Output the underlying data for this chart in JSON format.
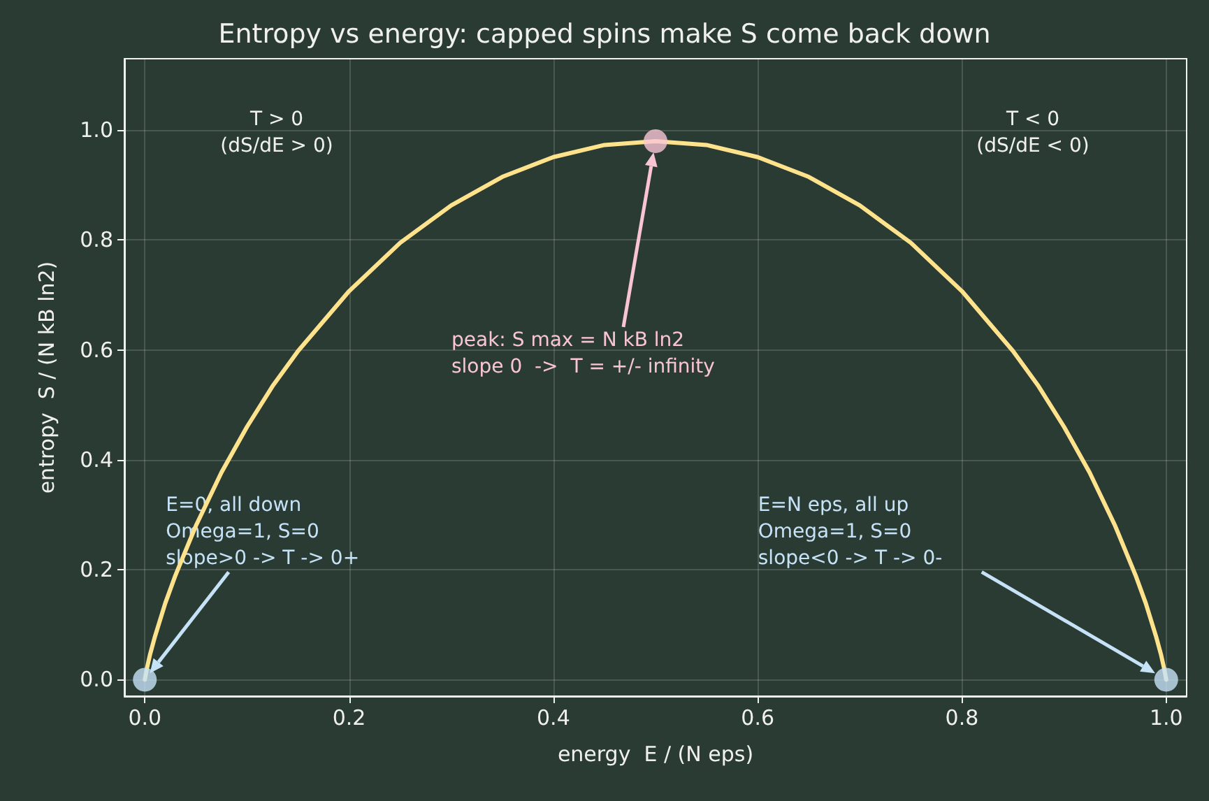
{
  "chart_data": {
    "type": "line",
    "title": "Entropy vs energy: capped spins make S come back down",
    "xlabel": "energy  E / (N eps)",
    "ylabel": "entropy  S / (N kB ln2)",
    "xlim": [
      -0.02,
      1.02
    ],
    "ylim": [
      -0.03,
      1.13
    ],
    "xticks": [
      {
        "value": 0,
        "label": "0.0"
      },
      0.2,
      0.4,
      0.6,
      0.8,
      {
        "value": 1,
        "label": "1.0"
      }
    ],
    "yticks": [
      {
        "value": 0,
        "label": "0.0"
      },
      0.2,
      0.4,
      0.6,
      0.8,
      {
        "value": 1,
        "label": "1.0"
      }
    ],
    "grid": true,
    "marker": "none",
    "series": [
      {
        "color": "#ffe38c",
        "x": [
          0,
          0.002,
          0.005,
          0.01,
          0.02,
          0.03,
          0.05,
          0.075,
          0.1,
          0.125,
          0.15,
          0.2,
          0.25,
          0.3,
          0.35,
          0.4,
          0.45,
          0.5,
          0.55,
          0.6,
          0.65,
          0.7,
          0.75,
          0.8,
          0.85,
          0.875,
          0.9,
          0.925,
          0.95,
          0.97,
          0.98,
          0.99,
          0.995,
          0.998,
          1
        ],
        "values": [
          0,
          0.02,
          0.045,
          0.079,
          0.139,
          0.19,
          0.28,
          0.377,
          0.46,
          0.534,
          0.598,
          0.707,
          0.795,
          0.863,
          0.915,
          0.951,
          0.973,
          0.98,
          0.973,
          0.951,
          0.915,
          0.863,
          0.795,
          0.707,
          0.598,
          0.534,
          0.46,
          0.377,
          0.28,
          0.19,
          0.139,
          0.079,
          0.045,
          0.02,
          0
        ]
      },
      {
        "type": "scatter",
        "marker": "circle",
        "color": "#c6e2f7",
        "x": [
          0,
          1
        ],
        "values": [
          0,
          0
        ]
      },
      {
        "type": "scatter",
        "marker": "circle",
        "color": "#f9c5d6",
        "x": [
          0.5
        ],
        "values": [
          0.98
        ]
      }
    ],
    "annotations": [
      "T > 0\n(dS/dE > 0)",
      "T < 0\n(dS/dE < 0)",
      "peak: S max = N kB ln2\nslope 0  ->  T = +/- infinity",
      "E=0, all down\nOmega=1, S=0\nslope>0 -> T -> 0+",
      "E=N eps, all up\nOmega=1, S=0\nslope<0 -> T -> 0-"
    ]
  }
}
